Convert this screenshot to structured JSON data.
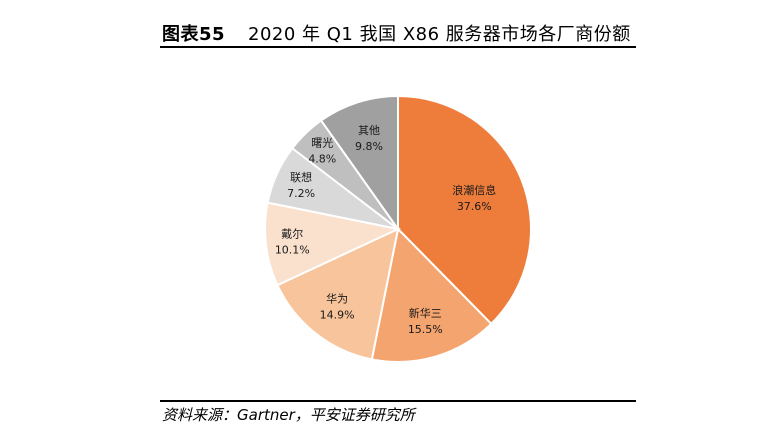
{
  "figure": {
    "label": "图表55",
    "title": "2020 年 Q1 我国 X86 服务器市场各厂商份额",
    "source": "资料来源：Gartner，平安证券研究所"
  },
  "chart_data": {
    "type": "pie",
    "title": "2020 年 Q1 我国 X86 服务器市场各厂商份额",
    "categories": [
      "浪潮信息",
      "新华三",
      "华为",
      "戴尔",
      "联想",
      "曙光",
      "其他"
    ],
    "values": [
      37.6,
      15.5,
      14.9,
      10.1,
      7.2,
      4.8,
      9.8
    ],
    "value_labels": [
      "37.6%",
      "15.5%",
      "14.9%",
      "10.1%",
      "7.2%",
      "4.8%",
      "9.8%"
    ],
    "colors": [
      "#EE7D3B",
      "#F4A46E",
      "#F7C49B",
      "#FAE1CE",
      "#D9D9D9",
      "#BFBFBF",
      "#A0A0A0"
    ],
    "start": "top, clockwise",
    "legend": "none (labels on slices)"
  }
}
